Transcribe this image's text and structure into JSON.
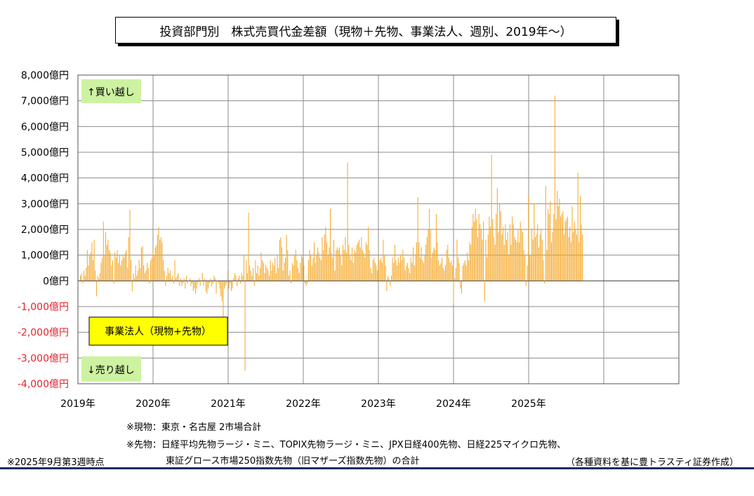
{
  "title": "投資部門別　株式売買代金差額（現物＋先物、事業法人、週別、2019年～）",
  "notes": {
    "spot": "※現物：東京・名古屋  2市場合計",
    "futures_line1": "※先物：日経平均先物ラージ・ミニ、TOPIX先物ラージ・ミニ、JPX日経400先物、日経225マイクロ先物、",
    "futures_line2": "東証グロース市場250指数先物（旧マザーズ指数先物）の合計",
    "as_of": "※2025年9月第3週時点",
    "source": "（各種資料を基に豊トラスティ証券作成）"
  },
  "chart_data": {
    "type": "bar",
    "unit_label": "億円",
    "ylim": [
      -4000,
      8000
    ],
    "ytick_values": [
      8000,
      7000,
      6000,
      5000,
      4000,
      3000,
      2000,
      1000,
      0,
      -1000,
      -2000,
      -3000,
      -4000
    ],
    "ytick_labels": [
      "8,000億円",
      "7,000億円",
      "6,000億円",
      "5,000億円",
      "4,000億円",
      "3,000億円",
      "2,000億円",
      "1,000億円",
      "0億円",
      "-1,000億円",
      "-2,000億円",
      "-3,000億円",
      "-4,000億円"
    ],
    "xtick_labels": [
      "2019年",
      "2020年",
      "2021年",
      "2022年",
      "2023年",
      "2024年",
      "2025年"
    ],
    "x_start": "2019-01",
    "x_end": "2026-01",
    "period": "weekly",
    "grid": true,
    "legend": {
      "label": "事業法人（現物+先物）",
      "placement": "lower-left",
      "color": "#ffff00"
    },
    "annotations": {
      "buy": "↑買い越し",
      "sell": "↓売り越し"
    },
    "bar_color": "#f5a623",
    "negative_tick_color": "#e8202a",
    "series": [
      {
        "name": "事業法人（現物+先物）",
        "values": [
          200,
          300,
          -100,
          400,
          200,
          500,
          1200,
          600,
          1000,
          1100,
          1500,
          800,
          1600,
          400,
          -600,
          200,
          100,
          300,
          700,
          900,
          2300,
          1000,
          1900,
          1400,
          1600,
          1200,
          1100,
          600,
          800,
          -100,
          1100,
          900,
          1200,
          700,
          1000,
          600,
          800,
          1000,
          900,
          1100,
          1200,
          500,
          1700,
          2750,
          800,
          -400,
          300,
          100,
          600,
          200,
          400,
          800,
          500,
          1300,
          1350,
          600,
          300,
          400,
          700,
          500,
          -100,
          800,
          900,
          1200,
          1000,
          1300,
          1400,
          1800,
          2100,
          1600,
          1700,
          1500,
          800,
          400,
          -200,
          200,
          500,
          300,
          400,
          100,
          200,
          -100,
          800,
          100,
          200,
          300,
          -200,
          100,
          -200,
          -100,
          100,
          -300,
          200,
          -100,
          0,
          100,
          -200,
          -100,
          -400,
          -300,
          -500,
          -300,
          -100,
          100,
          -200,
          0,
          300,
          -200,
          100,
          -400,
          -500,
          -300,
          -100,
          100,
          -200,
          -100,
          200,
          100,
          -500,
          0,
          -100,
          -300,
          -600,
          -800,
          -1400,
          -300,
          -200,
          -100,
          400,
          -300,
          -100,
          -400,
          -300,
          100,
          300,
          200,
          -200,
          100,
          200,
          -100,
          300,
          200,
          1000,
          -3500,
          800,
          300,
          2650,
          600,
          400,
          200,
          500,
          -200,
          800,
          300,
          600,
          200,
          500,
          1100,
          800,
          700,
          300,
          600,
          500,
          400,
          200,
          800,
          400,
          700,
          600,
          900,
          300,
          1000,
          500,
          1600,
          1700,
          1300,
          400,
          700,
          900,
          1800,
          1200,
          200,
          400,
          -100,
          700,
          600,
          1000,
          1200,
          800,
          500,
          300,
          700,
          1000,
          900,
          600,
          -100,
          -200,
          -100,
          800,
          1200,
          1000,
          600,
          900,
          1500,
          700,
          1000,
          1300,
          1100,
          900,
          800,
          1700,
          1200,
          1800,
          2100,
          1500,
          1000,
          1300,
          2800,
          1100,
          900,
          1600,
          400,
          1200,
          1300,
          1200,
          1300,
          1000,
          600,
          1400,
          1200,
          1700,
          1100,
          4600,
          1400,
          1000,
          800,
          1300,
          700,
          1200,
          1100,
          1400,
          1500,
          1600,
          1300,
          1700,
          1200,
          1100,
          900,
          1500,
          1400,
          2100,
          1200,
          500,
          300,
          800,
          900,
          700,
          600,
          400,
          900,
          800,
          900,
          700,
          1600,
          1000,
          600,
          -400,
          200,
          100,
          -200,
          200,
          900,
          700,
          1400,
          800,
          600,
          900,
          700,
          1000,
          800,
          1200,
          900,
          400,
          600,
          700,
          500,
          300,
          900,
          700,
          1300,
          600,
          1000,
          1500,
          3250,
          1500,
          900,
          1300,
          800,
          700,
          1000,
          1400,
          1700,
          2000,
          2800,
          2000,
          900,
          1100,
          1300,
          1200,
          2600,
          1500,
          800,
          600,
          700,
          900,
          500,
          400,
          600,
          1200,
          1400,
          900,
          700,
          800,
          600,
          -900,
          100,
          500,
          1600,
          900,
          700,
          -300,
          -500,
          600,
          700,
          800,
          600,
          1100,
          800,
          1500,
          1400,
          2100,
          2600,
          2300,
          2800,
          2400,
          1700,
          2600,
          2200,
          2000,
          1600,
          2300,
          -800,
          1600,
          900,
          1800,
          2500,
          2100,
          4900,
          2400,
          1700,
          1400,
          2600,
          3600,
          1900,
          3000,
          2700,
          1800,
          2100,
          1400,
          2200,
          1600,
          1900,
          1000,
          2200,
          1400,
          2500,
          2200,
          1700,
          1600,
          1500,
          2000,
          1500,
          2300,
          2000,
          1900,
          1200,
          1000,
          -200,
          600,
          3300,
          1000,
          1000,
          2000,
          1600,
          3000,
          1700,
          1800,
          2200,
          1300,
          1800,
          2000,
          1600,
          800,
          -100,
          3700,
          1200,
          2800,
          2600,
          3100,
          1500,
          1900,
          2600,
          7200,
          2400,
          3500,
          2900,
          3200,
          2500,
          2600,
          2700,
          1800,
          2300,
          2400,
          2500,
          1700,
          2100,
          1500,
          2900,
          1900,
          2300,
          2000,
          1800,
          4200,
          1500,
          3300,
          2200,
          1800
        ]
      }
    ]
  }
}
